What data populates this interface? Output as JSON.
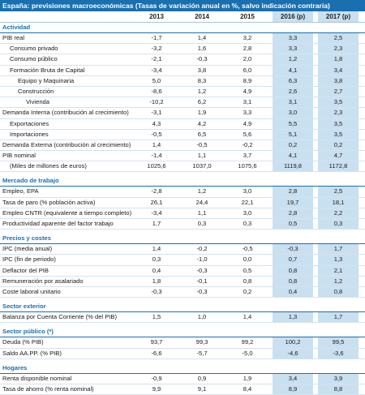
{
  "title": "España: previsiones macroeconómicas (Tasas de variación anual en %, salvo indicación contraria)",
  "columns": [
    "2013",
    "2014",
    "2015",
    "2016 (p)",
    "2017 (p)"
  ],
  "sections": [
    {
      "name": "Actividad",
      "rows": [
        {
          "label": "PIB real",
          "indent": 0,
          "values": [
            "-1,7",
            "1,4",
            "3,2",
            "3,3",
            "2,5"
          ]
        },
        {
          "label": "Consumo privado",
          "indent": 1,
          "values": [
            "-3,2",
            "1,6",
            "2,8",
            "3,3",
            "2,3"
          ]
        },
        {
          "label": "Consumo público",
          "indent": 1,
          "values": [
            "-2,1",
            "-0,3",
            "2,0",
            "1,2",
            "1,8"
          ]
        },
        {
          "label": "Formación Bruta de Capital",
          "indent": 1,
          "values": [
            "-3,4",
            "3,8",
            "6,0",
            "4,1",
            "3,4"
          ]
        },
        {
          "label": "Equipo y Maquinaria",
          "indent": 2,
          "values": [
            "5,0",
            "8,3",
            "8,9",
            "6,3",
            "3,8"
          ]
        },
        {
          "label": "Construcción",
          "indent": 2,
          "values": [
            "-8,6",
            "1,2",
            "4,9",
            "2,6",
            "2,7"
          ]
        },
        {
          "label": "Vivienda",
          "indent": 3,
          "values": [
            "-10,2",
            "6,2",
            "3,1",
            "3,1",
            "3,5"
          ]
        },
        {
          "label": "Demanda Interna (contribución al crecimiento)",
          "indent": 0,
          "values": [
            "-3,1",
            "1,9",
            "3,3",
            "3,0",
            "2,3"
          ]
        },
        {
          "label": "Exportaciones",
          "indent": 1,
          "values": [
            "4,3",
            "4,2",
            "4,9",
            "5,5",
            "3,5"
          ]
        },
        {
          "label": "Importaciones",
          "indent": 1,
          "values": [
            "-0,5",
            "6,5",
            "5,6",
            "5,1",
            "3,5"
          ]
        },
        {
          "label": "Demanda Externa (contribución al crecimiento)",
          "indent": 0,
          "values": [
            "1,4",
            "-0,5",
            "-0,2",
            "0,2",
            "0,2"
          ]
        },
        {
          "label": "PIB nominal",
          "indent": 0,
          "values": [
            "-1,4",
            "1,1",
            "3,7",
            "4,1",
            "4,7"
          ]
        },
        {
          "label": "(Miles de millones de euros)",
          "indent": 1,
          "values": [
            "1025,6",
            "1037,0",
            "1075,6",
            "1119,8",
            "1172,8"
          ]
        }
      ]
    },
    {
      "name": "Mercado de trabajo",
      "rows": [
        {
          "label": "Empleo, EPA",
          "indent": 0,
          "values": [
            "-2,8",
            "1,2",
            "3,0",
            "2,8",
            "2,5"
          ]
        },
        {
          "label": "Tasa de paro (% población activa)",
          "indent": 0,
          "values": [
            "26,1",
            "24,4",
            "22,1",
            "19,7",
            "18,1"
          ]
        },
        {
          "label": "Empleo CNTR (equivalente a tiempo completo)",
          "indent": 0,
          "values": [
            "-3,4",
            "1,1",
            "3,0",
            "2,8",
            "2,2"
          ]
        },
        {
          "label": "Productividad aparente del factor trabajo",
          "indent": 0,
          "values": [
            "1,7",
            "0,3",
            "0,3",
            "0,5",
            "0,3"
          ]
        }
      ]
    },
    {
      "name": "Precios y costes",
      "rows": [
        {
          "label": "IPC (media anual)",
          "indent": 0,
          "values": [
            "1,4",
            "-0,2",
            "-0,5",
            "-0,3",
            "1,7"
          ]
        },
        {
          "label": "IPC (fin de periodo)",
          "indent": 0,
          "values": [
            "0,3",
            "-1,0",
            "0,0",
            "0,7",
            "1,3"
          ]
        },
        {
          "label": "Deflactor del PIB",
          "indent": 0,
          "values": [
            "0,4",
            "-0,3",
            "0,5",
            "0,8",
            "2,1"
          ]
        },
        {
          "label": "Remuneración por asalariado",
          "indent": 0,
          "values": [
            "1,8",
            "-0,1",
            "0,8",
            "0,8",
            "1,2"
          ]
        },
        {
          "label": "Coste laboral unitario",
          "indent": 0,
          "values": [
            "-0,3",
            "-0,3",
            "0,2",
            "0,4",
            "0,8"
          ]
        }
      ]
    },
    {
      "name": "Sector exterior",
      "rows": [
        {
          "label": "Balanza por Cuenta Corriente (% del PIB)",
          "indent": 0,
          "values": [
            "1,5",
            "1,0",
            "1,4",
            "1,3",
            "1,7"
          ]
        }
      ]
    },
    {
      "name": "Sector público (*)",
      "rows": [
        {
          "label": "Deuda (% PIB)",
          "indent": 0,
          "values": [
            "93,7",
            "99,3",
            "99,2",
            "100,2",
            "99,5"
          ]
        },
        {
          "label": "Saldo AA.PP. (% PIB)",
          "indent": 0,
          "values": [
            "-6,6",
            "-5,7",
            "-5,0",
            "-4,6",
            "-3,6"
          ]
        }
      ]
    },
    {
      "name": "Hogares",
      "rows": [
        {
          "label": "Renta disponible nominal",
          "indent": 0,
          "values": [
            "-0,9",
            "0,9",
            "1,9",
            "3,4",
            "3,9"
          ]
        },
        {
          "label": "Tasa de ahorro (% renta nominal)",
          "indent": 0,
          "values": [
            "9,9",
            "9,1",
            "8,4",
            "8,9",
            "8,8"
          ]
        }
      ]
    }
  ]
}
